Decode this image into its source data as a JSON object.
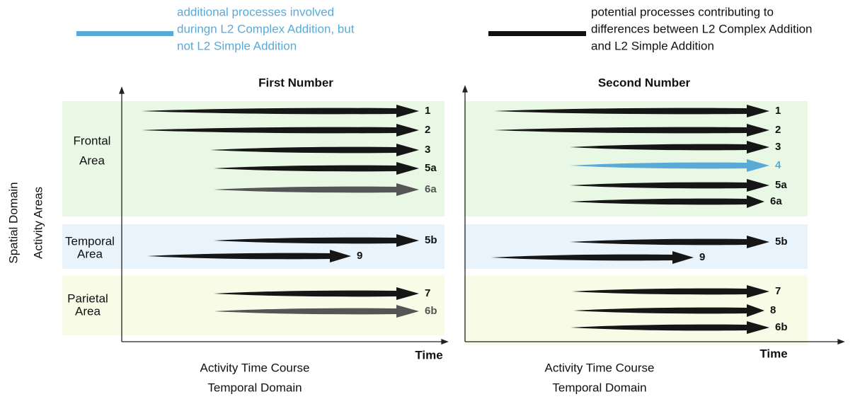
{
  "legend": [
    {
      "lines": [
        "additional processes involved",
        "duringn L2 Complex Addition, but",
        "not L2 Simple Addition"
      ]
    },
    {
      "lines": [
        "potential processes contributing to",
        "differences between L2 Complex Addition",
        "and L2 Simple Addition"
      ]
    }
  ],
  "y_axis_label": [
    "Spatial Domain",
    "Activity Areas"
  ],
  "area_labels": [
    [
      "Frontal",
      "Area"
    ],
    [
      "Temporal",
      "Area"
    ],
    [
      "Parietal",
      "Area"
    ]
  ],
  "panels": [
    {
      "title": "First Number",
      "time_label": "Time",
      "caption": [
        "Activity Time Course",
        "Temporal Domain"
      ],
      "arrows": [
        "1",
        "2",
        "3",
        "5a",
        "6a",
        "5b",
        "9",
        "7",
        "6b"
      ]
    },
    {
      "title": "Second Number",
      "time_label": "Time",
      "caption": [
        "Activity Time Course",
        "Temporal Domain"
      ],
      "arrows": [
        "1",
        "2",
        "3",
        "4",
        "5a",
        "6a",
        "5b",
        "9",
        "7",
        "8",
        "6b"
      ]
    }
  ]
}
